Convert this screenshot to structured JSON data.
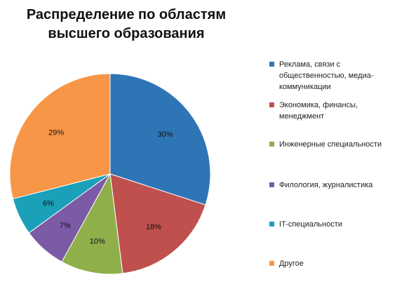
{
  "chart_data": {
    "type": "pie",
    "title": "Распределение по областям высшего образования",
    "categories": [
      "Реклама, связи с общественностью, медиа-коммуникации",
      "Экономика, финансы, менеджмент",
      "Инженерные специальности",
      "Филология, журналистика",
      "IT-специальности",
      "Другое"
    ],
    "values": [
      30,
      18,
      10,
      7,
      6,
      29
    ],
    "value_labels": [
      "30%",
      "18%",
      "10%",
      "7%",
      "6%",
      "29%"
    ],
    "colors": [
      "#2e75b6",
      "#c0504d",
      "#8faf4a",
      "#7b5aa6",
      "#1aa0b8",
      "#f79646"
    ],
    "start": "12 o'clock",
    "direction": "clockwise",
    "legend_position": "right"
  }
}
